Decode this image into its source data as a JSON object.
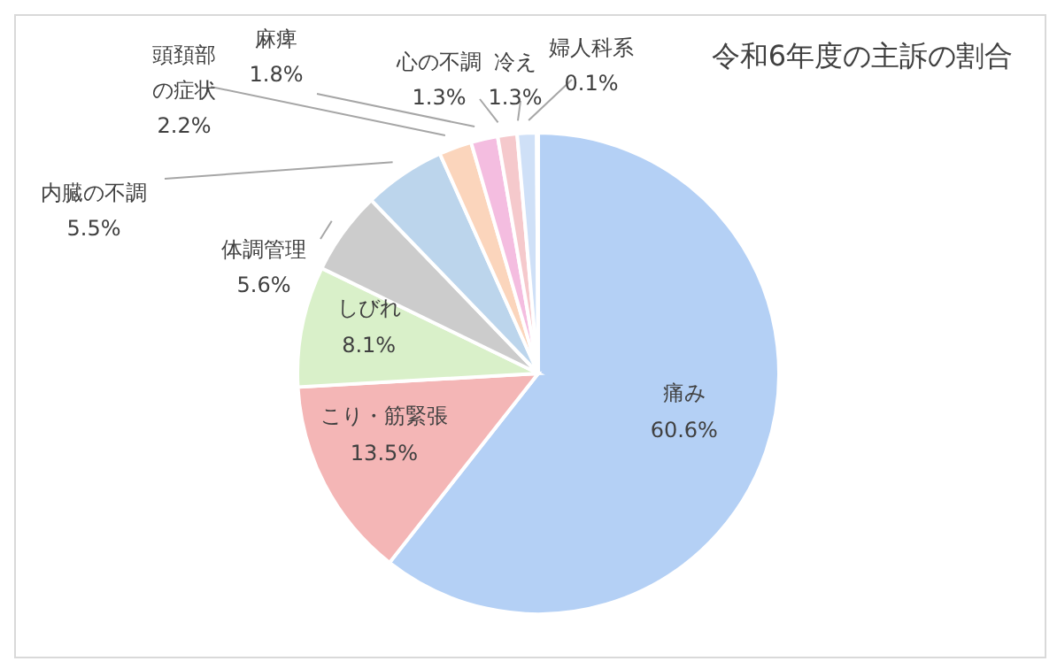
{
  "chart_data": {
    "type": "pie",
    "title": "令和6年度の主訴の割合",
    "categories": [
      "痛み",
      "こり・筋緊張",
      "しびれ",
      "体調管理",
      "内臓の不調",
      "頭頚部の症状",
      "麻痺",
      "心の不調",
      "冷え",
      "婦人科系"
    ],
    "values": [
      60.6,
      13.5,
      8.1,
      5.6,
      5.5,
      2.2,
      1.8,
      1.3,
      1.3,
      0.1
    ],
    "value_labels": [
      "60.6%",
      "13.5%",
      "8.1%",
      "5.6%",
      "5.5%",
      "2.2%",
      "1.8%",
      "1.3%",
      "1.3%",
      "0.1%"
    ],
    "colors": [
      "#b4d0f5",
      "#f4b6b6",
      "#d9f0c9",
      "#cccccc",
      "#bcd5ec",
      "#fbd5bc",
      "#f4bde0",
      "#f5c9cc",
      "#cfe0f7",
      "#d5e3f5"
    ],
    "legend": false
  }
}
